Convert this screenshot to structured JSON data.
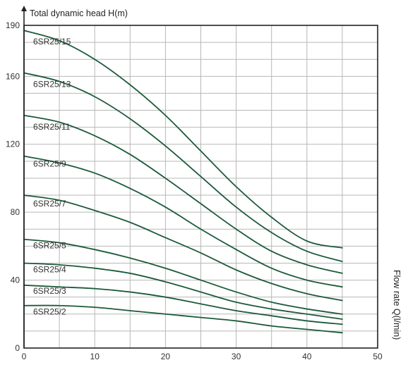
{
  "chart_data": {
    "type": "line",
    "ylabel": "Total dynamic head H(m)",
    "xlabel": "Flow rate Q(l/min)",
    "xlim": [
      0,
      50
    ],
    "ylim": [
      0,
      190
    ],
    "xticks": [
      0,
      10,
      20,
      30,
      40,
      50
    ],
    "yticks": [
      0,
      40,
      80,
      120,
      160,
      190
    ],
    "grid": true,
    "line_color": "#1c5a3a",
    "series": [
      {
        "name": "6SR25/15",
        "x": [
          0,
          5,
          10,
          15,
          20,
          25,
          30,
          35,
          40,
          45
        ],
        "y": [
          187,
          181,
          170,
          155,
          137,
          116,
          95,
          77,
          63,
          59
        ]
      },
      {
        "name": "6SR25/13",
        "x": [
          0,
          5,
          10,
          15,
          20,
          25,
          30,
          35,
          40,
          45
        ],
        "y": [
          162,
          157,
          148,
          135,
          119,
          101,
          83,
          68,
          57,
          51
        ]
      },
      {
        "name": "6SR25/11",
        "x": [
          0,
          5,
          10,
          15,
          20,
          25,
          30,
          35,
          40,
          45
        ],
        "y": [
          137,
          133,
          125,
          114,
          100,
          85,
          70,
          57,
          49,
          44
        ]
      },
      {
        "name": "6SR25/9",
        "x": [
          0,
          5,
          10,
          15,
          20,
          25,
          30,
          35,
          40,
          45
        ],
        "y": [
          113,
          109,
          103,
          94,
          83,
          70,
          58,
          47,
          40,
          36
        ]
      },
      {
        "name": "6SR25/7",
        "x": [
          0,
          5,
          10,
          15,
          20,
          25,
          30,
          35,
          40,
          45
        ],
        "y": [
          90,
          87,
          81,
          74,
          65,
          56,
          46,
          38,
          32,
          28
        ]
      },
      {
        "name": "6SR25/5",
        "x": [
          0,
          5,
          10,
          15,
          20,
          25,
          30,
          35,
          40,
          45
        ],
        "y": [
          64,
          62,
          58,
          53,
          47,
          40,
          33,
          27,
          23,
          20
        ]
      },
      {
        "name": "6SR25/4",
        "x": [
          0,
          5,
          10,
          15,
          20,
          25,
          30,
          35,
          40,
          45
        ],
        "y": [
          50,
          49,
          47,
          44,
          39,
          33,
          27,
          23,
          20,
          17
        ]
      },
      {
        "name": "6SR25/3",
        "x": [
          0,
          5,
          10,
          15,
          20,
          25,
          30,
          35,
          40,
          45
        ],
        "y": [
          37,
          36,
          35,
          33,
          30,
          26,
          22,
          19,
          16,
          14
        ]
      },
      {
        "name": "6SR25/2",
        "x": [
          0,
          5,
          10,
          15,
          20,
          25,
          30,
          35,
          40,
          45
        ],
        "y": [
          25,
          25,
          24,
          22,
          20,
          18,
          16,
          13,
          11,
          9
        ]
      }
    ]
  }
}
